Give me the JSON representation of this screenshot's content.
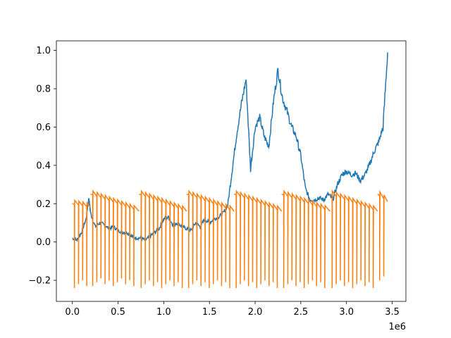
{
  "chart_data": {
    "type": "line",
    "title": "",
    "xlabel": "",
    "ylabel": "",
    "x_offset_label": "1e6",
    "xlim": [
      -175000,
      3650000
    ],
    "ylim": [
      -0.31,
      1.05
    ],
    "x_ticks": [
      0,
      500000,
      1000000,
      1500000,
      2000000,
      2500000,
      3000000,
      3500000
    ],
    "x_tick_labels": [
      "0.0",
      "0.5",
      "1.0",
      "1.5",
      "2.0",
      "2.5",
      "3.0",
      "3.5"
    ],
    "y_ticks": [
      -0.2,
      0.0,
      0.2,
      0.4,
      0.6,
      0.8,
      1.0
    ],
    "y_tick_labels": [
      "−0.2",
      "0.0",
      "0.2",
      "0.4",
      "0.6",
      "0.8",
      "1.0"
    ],
    "grid": false,
    "legend": "none",
    "series": [
      {
        "color": "#1f77b4",
        "x": [
          0,
          50000,
          100000,
          150000,
          180000,
          200000,
          250000,
          300000,
          350000,
          400000,
          450000,
          500000,
          550000,
          600000,
          650000,
          700000,
          750000,
          800000,
          850000,
          900000,
          950000,
          1000000,
          1050000,
          1100000,
          1150000,
          1200000,
          1250000,
          1300000,
          1350000,
          1400000,
          1450000,
          1500000,
          1550000,
          1600000,
          1650000,
          1700000,
          1750000,
          1800000,
          1850000,
          1900000,
          1950000,
          2000000,
          2050000,
          2100000,
          2150000,
          2200000,
          2250000,
          2300000,
          2350000,
          2400000,
          2450000,
          2500000,
          2550000,
          2600000,
          2650000,
          2700000,
          2750000,
          2800000,
          2850000,
          2900000,
          2950000,
          3000000,
          3050000,
          3100000,
          3150000,
          3200000,
          3250000,
          3300000,
          3350000,
          3400000,
          3450000
        ],
        "y": [
          0.02,
          0.01,
          0.05,
          0.12,
          0.23,
          0.15,
          0.08,
          0.1,
          0.09,
          0.07,
          0.08,
          0.06,
          0.05,
          0.05,
          0.03,
          0.02,
          0.02,
          0.01,
          0.03,
          0.05,
          0.07,
          0.12,
          0.13,
          0.09,
          0.1,
          0.08,
          0.07,
          0.06,
          0.1,
          0.08,
          0.12,
          0.1,
          0.12,
          0.13,
          0.15,
          0.19,
          0.38,
          0.57,
          0.72,
          0.85,
          0.38,
          0.6,
          0.65,
          0.55,
          0.5,
          0.73,
          0.9,
          0.75,
          0.68,
          0.6,
          0.55,
          0.45,
          0.28,
          0.22,
          0.22,
          0.23,
          0.22,
          0.25,
          0.22,
          0.3,
          0.35,
          0.37,
          0.35,
          0.36,
          0.32,
          0.35,
          0.4,
          0.47,
          0.52,
          0.6,
          0.99
        ]
      },
      {
        "color": "#ff7f0e",
        "pattern": "sawtooth with downward spikes",
        "segment_starts": [
          0,
          200000,
          730000,
          1250000,
          1770000,
          2290000,
          2820000,
          3340000
        ],
        "segment_ends": [
          200000,
          730000,
          1250000,
          1770000,
          2290000,
          2820000,
          3340000,
          3450000
        ],
        "segment_start_y": [
          0.2,
          0.25,
          0.25,
          0.25,
          0.25,
          0.25,
          0.25,
          0.25
        ],
        "segment_end_y": [
          0.18,
          0.16,
          0.16,
          0.16,
          0.16,
          0.16,
          0.16,
          0.21
        ],
        "spike_interval": 45000,
        "spike_min_y": [
          -0.24,
          -0.23,
          -0.24,
          -0.24,
          -0.24,
          -0.24,
          -0.24,
          -0.2
        ]
      }
    ]
  }
}
